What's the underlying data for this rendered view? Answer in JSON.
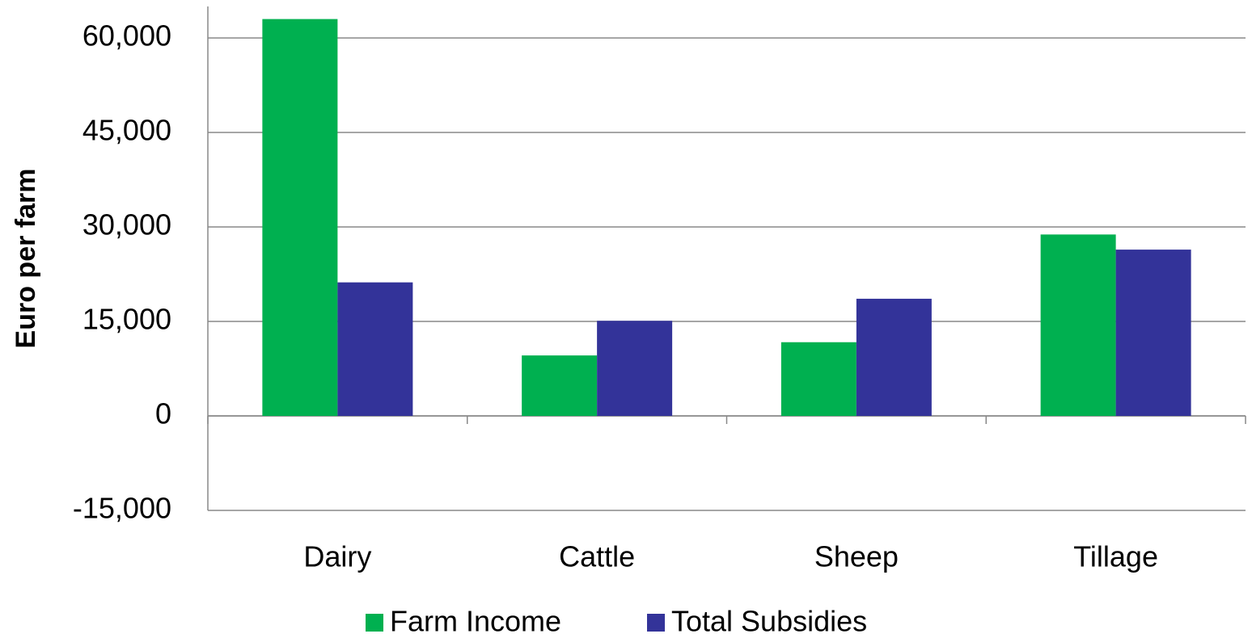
{
  "chart_data": {
    "type": "bar",
    "y_label": "Euro per farm",
    "categories": [
      "Dairy",
      "Cattle",
      "Sheep",
      "Tillage"
    ],
    "series": [
      {
        "name": "Farm Income",
        "color": "#00b050",
        "values": [
          63000,
          9600,
          11700,
          28800
        ]
      },
      {
        "name": "Total Subsidies",
        "color": "#333399",
        "values": [
          21200,
          15100,
          18600,
          26400
        ]
      }
    ],
    "ylim": [
      -15000,
      65000
    ],
    "yticks": [
      {
        "value": -15000,
        "label": "-15,000"
      },
      0,
      {
        "value": 15000,
        "label": "15,000"
      },
      {
        "value": 30000,
        "label": "30,000"
      },
      {
        "value": 45000,
        "label": "45,000"
      },
      {
        "value": 60000,
        "label": "60,000"
      }
    ],
    "grid": true,
    "legend": "bottom"
  }
}
